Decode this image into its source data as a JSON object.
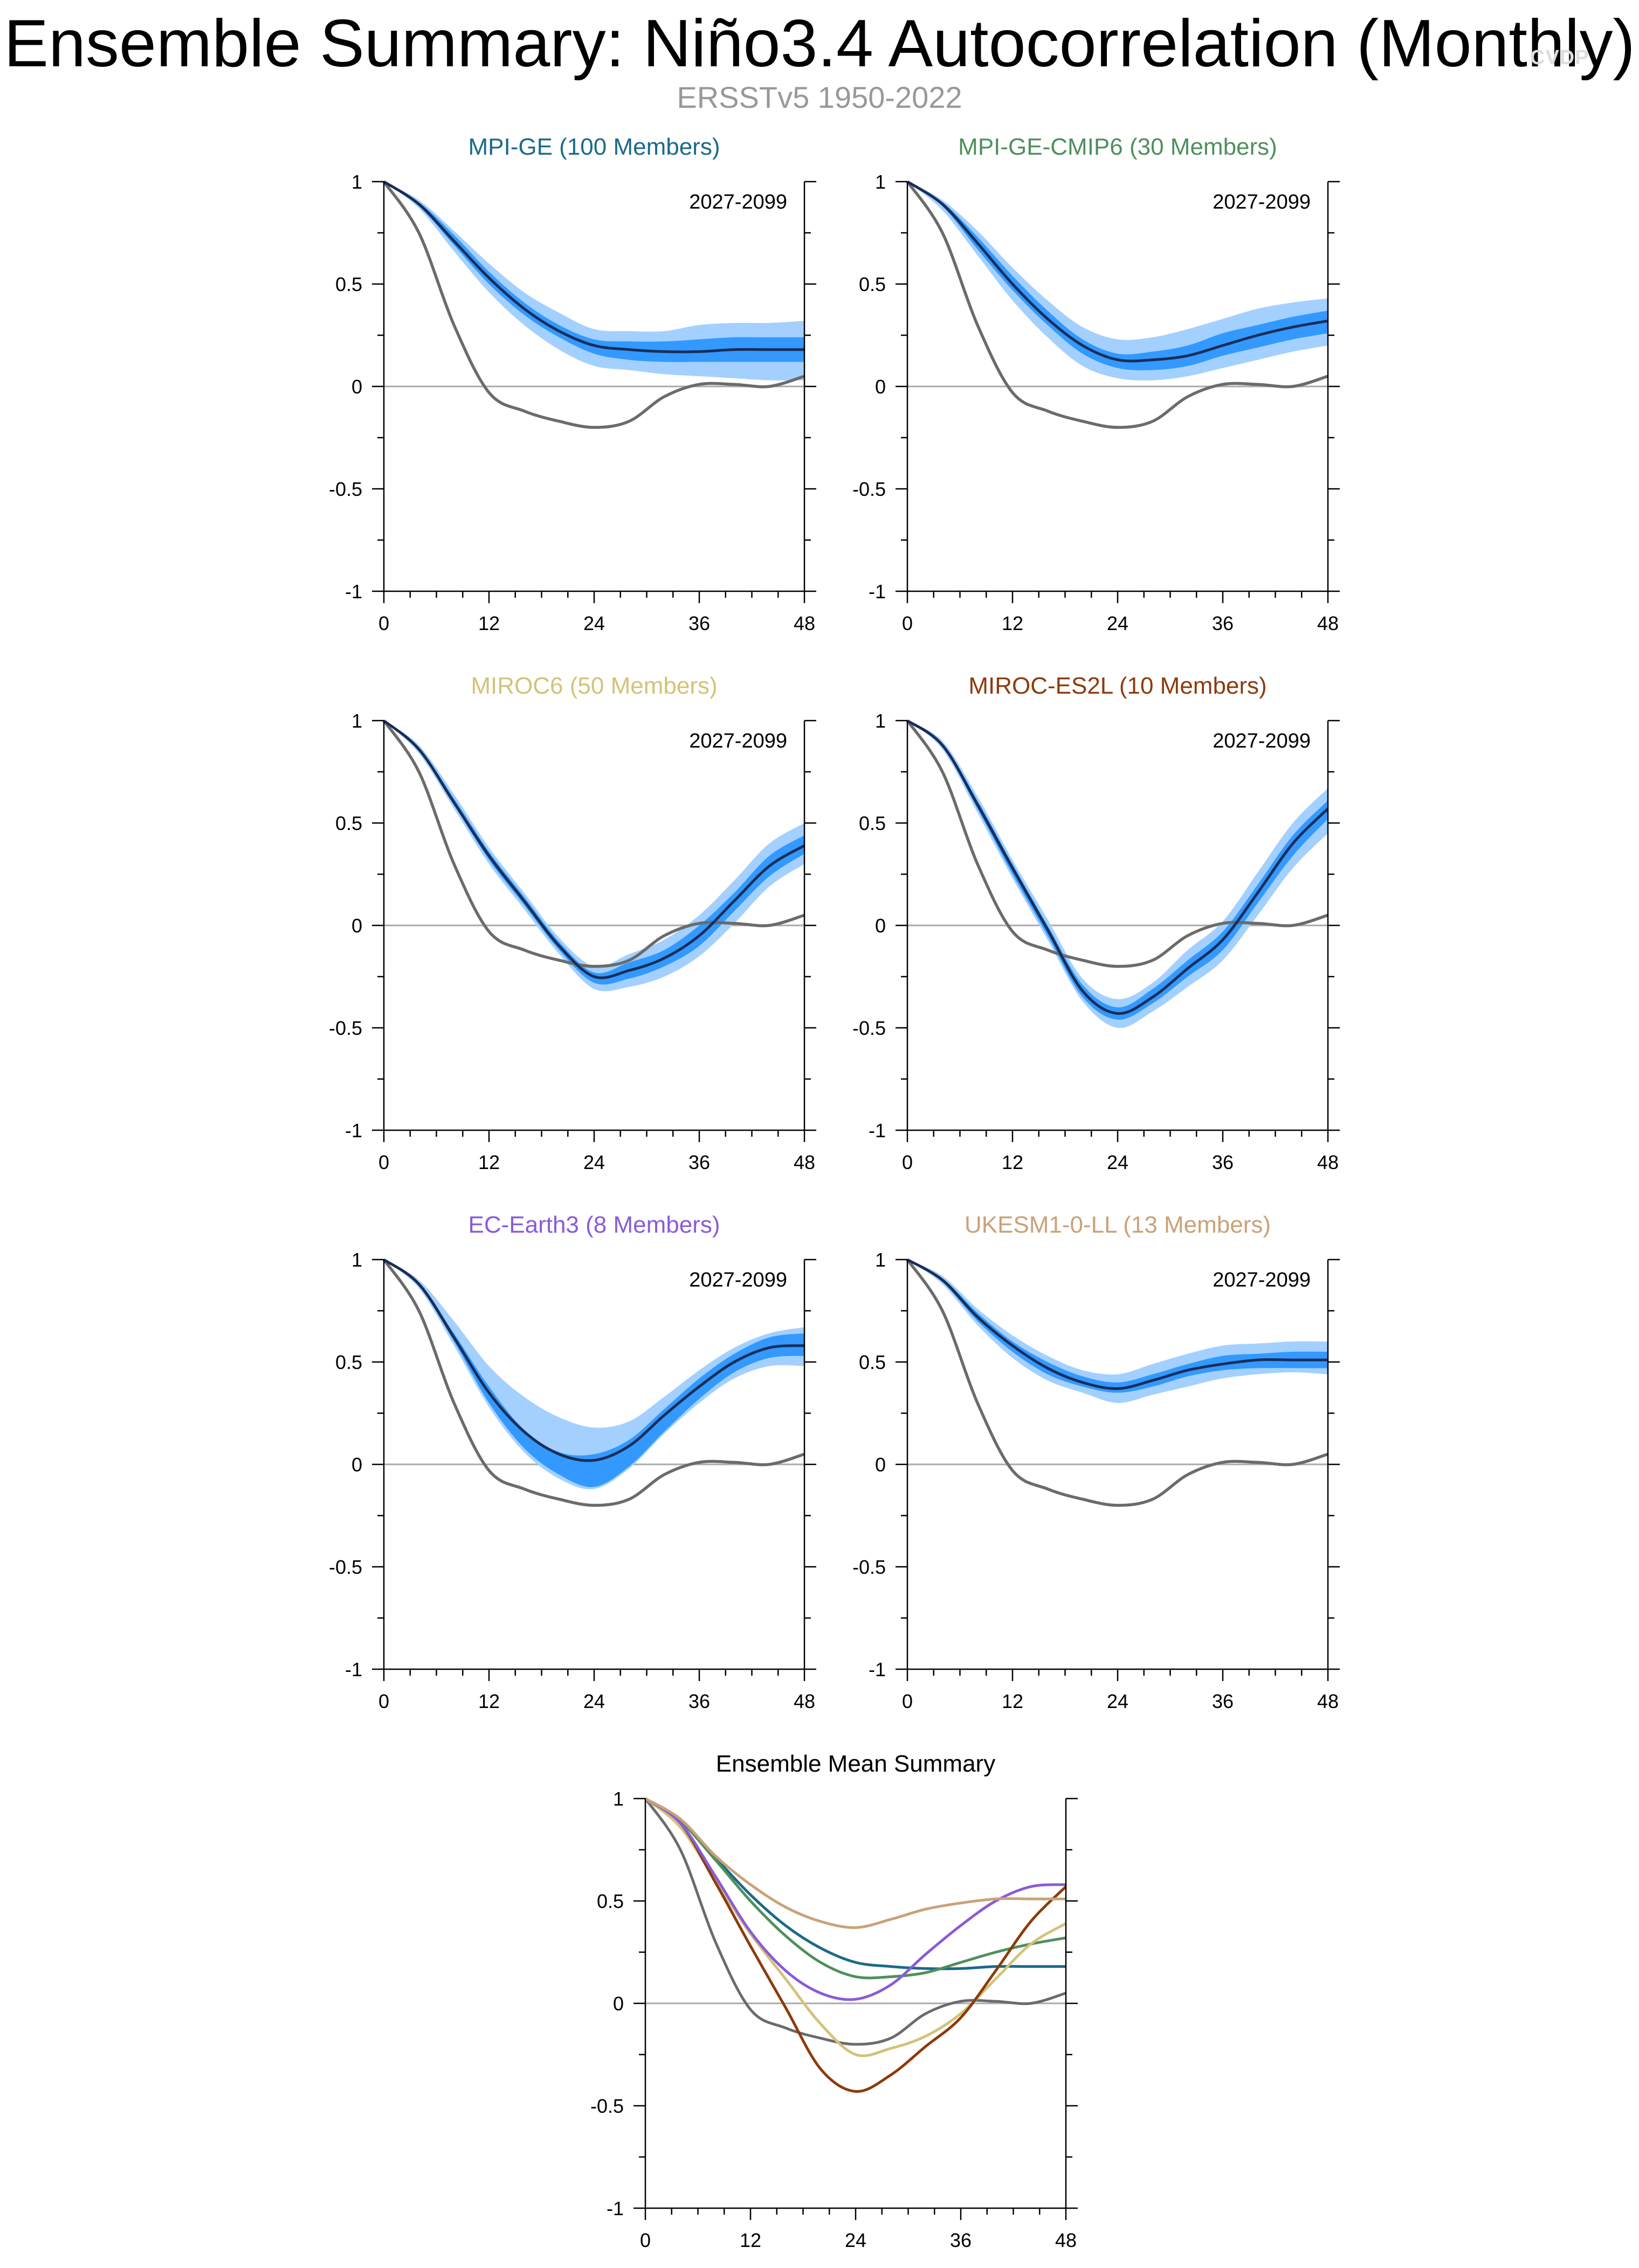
{
  "title": "Ensemble Summary: Niño3.4 Autocorrelation (Monthly)",
  "subtitle": "ERSSTv5 1950-2022",
  "watermark": "CVDP",
  "colors": {
    "outer_band": "#a3d0ff",
    "inner_band": "#3399ff",
    "ensemble_mean": "#1a2d57",
    "observations": "#6b6b6b",
    "zero_line": "#aaaaaa",
    "axis": "#000000"
  },
  "chart_data": [
    {
      "type": "line",
      "title": "MPI-GE (100 Members)",
      "title_color": "#1a6a8a",
      "period_label": "2027-2099",
      "x_ticks": [
        0,
        12,
        24,
        36,
        48
      ],
      "y_ticks": [
        -1,
        -0.5,
        0,
        0.5,
        1
      ],
      "y_tick_labels": [
        "-1",
        "-0.5",
        "0",
        "0.5",
        "1"
      ],
      "xlim": [
        0,
        48
      ],
      "ylim": [
        -1,
        1
      ],
      "x": [
        0,
        4,
        8,
        12,
        16,
        20,
        24,
        28,
        32,
        36,
        40,
        44,
        48
      ],
      "series": [
        {
          "name": "outer_band",
          "lower": [
            1.0,
            0.87,
            0.66,
            0.46,
            0.3,
            0.18,
            0.1,
            0.08,
            0.06,
            0.05,
            0.04,
            0.03,
            0.03
          ],
          "upper": [
            1.0,
            0.91,
            0.76,
            0.6,
            0.46,
            0.36,
            0.28,
            0.27,
            0.27,
            0.3,
            0.31,
            0.31,
            0.32
          ]
        },
        {
          "name": "inner_band",
          "lower": [
            1.0,
            0.88,
            0.69,
            0.5,
            0.35,
            0.24,
            0.16,
            0.13,
            0.12,
            0.12,
            0.12,
            0.12,
            0.12
          ],
          "upper": [
            1.0,
            0.9,
            0.74,
            0.56,
            0.41,
            0.3,
            0.23,
            0.22,
            0.22,
            0.23,
            0.24,
            0.24,
            0.24
          ]
        },
        {
          "name": "ensemble_mean",
          "values": [
            1.0,
            0.89,
            0.71,
            0.53,
            0.38,
            0.27,
            0.2,
            0.18,
            0.17,
            0.17,
            0.18,
            0.18,
            0.18
          ]
        },
        {
          "name": "observations",
          "values": [
            1.0,
            0.75,
            0.3,
            -0.03,
            -0.12,
            -0.17,
            -0.2,
            -0.17,
            -0.05,
            0.01,
            0.01,
            0.0,
            0.05
          ]
        }
      ]
    },
    {
      "type": "line",
      "title": "MPI-GE-CMIP6 (30 Members)",
      "title_color": "#4f8f5c",
      "period_label": "2027-2099",
      "x_ticks": [
        0,
        12,
        24,
        36,
        48
      ],
      "y_ticks": [
        -1,
        -0.5,
        0,
        0.5,
        1
      ],
      "y_tick_labels": [
        "-1",
        "-0.5",
        "0",
        "0.5",
        "1"
      ],
      "xlim": [
        0,
        48
      ],
      "ylim": [
        -1,
        1
      ],
      "x": [
        0,
        4,
        8,
        12,
        16,
        20,
        24,
        28,
        32,
        36,
        40,
        44,
        48
      ],
      "series": [
        {
          "name": "outer_band",
          "lower": [
            1.0,
            0.86,
            0.64,
            0.42,
            0.24,
            0.1,
            0.04,
            0.03,
            0.05,
            0.09,
            0.13,
            0.17,
            0.2
          ],
          "upper": [
            1.0,
            0.91,
            0.76,
            0.58,
            0.42,
            0.29,
            0.23,
            0.24,
            0.28,
            0.33,
            0.38,
            0.41,
            0.43
          ]
        },
        {
          "name": "inner_band",
          "lower": [
            1.0,
            0.88,
            0.67,
            0.47,
            0.3,
            0.16,
            0.09,
            0.08,
            0.1,
            0.15,
            0.19,
            0.23,
            0.26
          ],
          "upper": [
            1.0,
            0.9,
            0.73,
            0.54,
            0.37,
            0.23,
            0.16,
            0.17,
            0.2,
            0.26,
            0.3,
            0.34,
            0.37
          ]
        },
        {
          "name": "ensemble_mean",
          "values": [
            1.0,
            0.89,
            0.7,
            0.5,
            0.33,
            0.2,
            0.13,
            0.13,
            0.15,
            0.2,
            0.25,
            0.29,
            0.32
          ]
        },
        {
          "name": "observations",
          "values": [
            1.0,
            0.75,
            0.3,
            -0.03,
            -0.12,
            -0.17,
            -0.2,
            -0.17,
            -0.05,
            0.01,
            0.01,
            0.0,
            0.05
          ]
        }
      ]
    },
    {
      "type": "line",
      "title": "MIROC6 (50 Members)",
      "title_color": "#d3c27a",
      "period_label": "2027-2099",
      "x_ticks": [
        0,
        12,
        24,
        36,
        48
      ],
      "y_ticks": [
        -1,
        -0.5,
        0,
        0.5,
        1
      ],
      "y_tick_labels": [
        "-1",
        "-0.5",
        "0",
        "0.5",
        "1"
      ],
      "xlim": [
        0,
        48
      ],
      "ylim": [
        -1,
        1
      ],
      "x": [
        0,
        4,
        8,
        12,
        16,
        20,
        24,
        28,
        32,
        36,
        40,
        44,
        48
      ],
      "series": [
        {
          "name": "outer_band",
          "lower": [
            1.0,
            0.84,
            0.57,
            0.3,
            0.08,
            -0.14,
            -0.31,
            -0.3,
            -0.25,
            -0.15,
            0.01,
            0.19,
            0.3
          ],
          "upper": [
            1.0,
            0.88,
            0.64,
            0.38,
            0.16,
            -0.06,
            -0.2,
            -0.14,
            -0.07,
            0.05,
            0.22,
            0.4,
            0.5
          ]
        },
        {
          "name": "inner_band",
          "lower": [
            1.0,
            0.85,
            0.59,
            0.32,
            0.1,
            -0.12,
            -0.28,
            -0.26,
            -0.2,
            -0.1,
            0.07,
            0.24,
            0.35
          ],
          "upper": [
            1.0,
            0.87,
            0.62,
            0.36,
            0.14,
            -0.08,
            -0.23,
            -0.18,
            -0.12,
            0.0,
            0.16,
            0.34,
            0.44
          ]
        },
        {
          "name": "ensemble_mean",
          "values": [
            1.0,
            0.86,
            0.6,
            0.34,
            0.12,
            -0.1,
            -0.25,
            -0.22,
            -0.16,
            -0.05,
            0.12,
            0.29,
            0.39
          ]
        },
        {
          "name": "observations",
          "values": [
            1.0,
            0.75,
            0.3,
            -0.03,
            -0.12,
            -0.17,
            -0.2,
            -0.17,
            -0.05,
            0.01,
            0.01,
            0.0,
            0.05
          ]
        }
      ]
    },
    {
      "type": "line",
      "title": "MIROC-ES2L (10 Members)",
      "title_color": "#8c3b0c",
      "period_label": "2027-2099",
      "x_ticks": [
        0,
        12,
        24,
        36,
        48
      ],
      "y_ticks": [
        -1,
        -0.5,
        0,
        0.5,
        1
      ],
      "y_tick_labels": [
        "-1",
        "-0.5",
        "0",
        "0.5",
        "1"
      ],
      "xlim": [
        0,
        48
      ],
      "ylim": [
        -1,
        1
      ],
      "x": [
        0,
        4,
        8,
        12,
        16,
        20,
        24,
        28,
        32,
        36,
        40,
        44,
        48
      ],
      "series": [
        {
          "name": "outer_band",
          "lower": [
            1.0,
            0.86,
            0.55,
            0.23,
            -0.07,
            -0.37,
            -0.5,
            -0.42,
            -0.3,
            -0.17,
            0.05,
            0.28,
            0.45
          ],
          "upper": [
            1.0,
            0.9,
            0.63,
            0.32,
            0.03,
            -0.26,
            -0.36,
            -0.28,
            -0.12,
            0.02,
            0.26,
            0.5,
            0.67
          ]
        },
        {
          "name": "inner_band",
          "lower": [
            1.0,
            0.87,
            0.57,
            0.25,
            -0.05,
            -0.35,
            -0.46,
            -0.38,
            -0.25,
            -0.12,
            0.11,
            0.34,
            0.52
          ],
          "upper": [
            1.0,
            0.89,
            0.61,
            0.3,
            0.0,
            -0.29,
            -0.4,
            -0.31,
            -0.17,
            -0.03,
            0.2,
            0.44,
            0.61
          ]
        },
        {
          "name": "ensemble_mean",
          "values": [
            1.0,
            0.88,
            0.59,
            0.28,
            -0.02,
            -0.32,
            -0.43,
            -0.35,
            -0.21,
            -0.07,
            0.16,
            0.4,
            0.57
          ]
        },
        {
          "name": "observations",
          "values": [
            1.0,
            0.75,
            0.3,
            -0.03,
            -0.12,
            -0.17,
            -0.2,
            -0.17,
            -0.05,
            0.01,
            0.01,
            0.0,
            0.05
          ]
        }
      ]
    },
    {
      "type": "line",
      "title": "EC-Earth3 (8 Members)",
      "title_color": "#8a5bd8",
      "period_label": "2027-2099",
      "x_ticks": [
        0,
        12,
        24,
        36,
        48
      ],
      "y_ticks": [
        -1,
        -0.5,
        0,
        0.5,
        1
      ],
      "y_tick_labels": [
        "-1",
        "-0.5",
        "0",
        "0.5",
        "1"
      ],
      "xlim": [
        0,
        48
      ],
      "ylim": [
        -1,
        1
      ],
      "x": [
        0,
        4,
        8,
        12,
        16,
        20,
        24,
        28,
        32,
        36,
        40,
        44,
        48
      ],
      "series": [
        {
          "name": "outer_band",
          "lower": [
            1.0,
            0.86,
            0.58,
            0.28,
            0.06,
            -0.07,
            -0.12,
            -0.02,
            0.15,
            0.3,
            0.42,
            0.48,
            0.48
          ],
          "upper": [
            1.0,
            0.9,
            0.7,
            0.48,
            0.33,
            0.23,
            0.18,
            0.21,
            0.33,
            0.46,
            0.57,
            0.64,
            0.67
          ]
        },
        {
          "name": "inner_band",
          "lower": [
            1.0,
            0.87,
            0.6,
            0.3,
            0.08,
            -0.05,
            -0.11,
            -0.01,
            0.16,
            0.32,
            0.45,
            0.52,
            0.53
          ],
          "upper": [
            1.0,
            0.89,
            0.64,
            0.38,
            0.17,
            0.06,
            0.05,
            0.12,
            0.27,
            0.42,
            0.54,
            0.62,
            0.64
          ]
        },
        {
          "name": "ensemble_mean",
          "values": [
            1.0,
            0.88,
            0.62,
            0.35,
            0.16,
            0.05,
            0.02,
            0.09,
            0.24,
            0.38,
            0.5,
            0.57,
            0.58
          ]
        },
        {
          "name": "observations",
          "values": [
            1.0,
            0.75,
            0.3,
            -0.03,
            -0.12,
            -0.17,
            -0.2,
            -0.17,
            -0.05,
            0.01,
            0.01,
            0.0,
            0.05
          ]
        }
      ]
    },
    {
      "type": "line",
      "title": "UKESM1-0-LL (13 Members)",
      "title_color": "#c9a278",
      "period_label": "2027-2099",
      "x_ticks": [
        0,
        12,
        24,
        36,
        48
      ],
      "y_ticks": [
        -1,
        -0.5,
        0,
        0.5,
        1
      ],
      "y_tick_labels": [
        "-1",
        "-0.5",
        "0",
        "0.5",
        "1"
      ],
      "xlim": [
        0,
        48
      ],
      "ylim": [
        -1,
        1
      ],
      "x": [
        0,
        4,
        8,
        12,
        16,
        20,
        24,
        28,
        32,
        36,
        40,
        44,
        48
      ],
      "series": [
        {
          "name": "outer_band",
          "lower": [
            1.0,
            0.88,
            0.68,
            0.52,
            0.41,
            0.35,
            0.3,
            0.34,
            0.38,
            0.42,
            0.44,
            0.45,
            0.44
          ],
          "upper": [
            1.0,
            0.92,
            0.76,
            0.63,
            0.53,
            0.46,
            0.44,
            0.49,
            0.54,
            0.58,
            0.59,
            0.6,
            0.6
          ]
        },
        {
          "name": "inner_band",
          "lower": [
            1.0,
            0.89,
            0.7,
            0.55,
            0.44,
            0.38,
            0.35,
            0.38,
            0.43,
            0.46,
            0.47,
            0.47,
            0.47
          ],
          "upper": [
            1.0,
            0.91,
            0.74,
            0.6,
            0.5,
            0.43,
            0.4,
            0.44,
            0.49,
            0.53,
            0.54,
            0.55,
            0.55
          ]
        },
        {
          "name": "ensemble_mean",
          "values": [
            1.0,
            0.9,
            0.72,
            0.58,
            0.47,
            0.4,
            0.37,
            0.41,
            0.46,
            0.49,
            0.51,
            0.51,
            0.51
          ]
        },
        {
          "name": "observations",
          "values": [
            1.0,
            0.75,
            0.3,
            -0.03,
            -0.12,
            -0.17,
            -0.2,
            -0.17,
            -0.05,
            0.01,
            0.01,
            0.0,
            0.05
          ]
        }
      ]
    },
    {
      "type": "line",
      "title": "Ensemble Mean Summary",
      "title_color": "#000000",
      "x_ticks": [
        0,
        12,
        24,
        36,
        48
      ],
      "y_ticks": [
        -1,
        -0.5,
        0,
        0.5,
        1
      ],
      "y_tick_labels": [
        "-1",
        "-0.5",
        "0",
        "0.5",
        "1"
      ],
      "xlim": [
        0,
        48
      ],
      "ylim": [
        -1,
        1
      ],
      "x": [
        0,
        4,
        8,
        12,
        16,
        20,
        24,
        28,
        32,
        36,
        40,
        44,
        48
      ],
      "series": [
        {
          "name": "observations",
          "color": "#6b6b6b",
          "values": [
            1.0,
            0.75,
            0.3,
            -0.03,
            -0.12,
            -0.17,
            -0.2,
            -0.17,
            -0.05,
            0.01,
            0.01,
            0.0,
            0.05
          ]
        },
        {
          "name": "MPI-GE",
          "color": "#1a6a8a",
          "values": [
            1.0,
            0.89,
            0.71,
            0.53,
            0.38,
            0.27,
            0.2,
            0.18,
            0.17,
            0.17,
            0.18,
            0.18,
            0.18
          ]
        },
        {
          "name": "MPI-GE-CMIP6",
          "color": "#4f8f5c",
          "values": [
            1.0,
            0.89,
            0.7,
            0.5,
            0.33,
            0.2,
            0.13,
            0.13,
            0.15,
            0.2,
            0.25,
            0.29,
            0.32
          ]
        },
        {
          "name": "MIROC6",
          "color": "#d3c27a",
          "values": [
            1.0,
            0.86,
            0.6,
            0.34,
            0.12,
            -0.1,
            -0.25,
            -0.22,
            -0.16,
            -0.05,
            0.12,
            0.29,
            0.39
          ]
        },
        {
          "name": "MIROC-ES2L",
          "color": "#8c3b0c",
          "values": [
            1.0,
            0.88,
            0.59,
            0.28,
            -0.02,
            -0.32,
            -0.43,
            -0.35,
            -0.21,
            -0.07,
            0.16,
            0.4,
            0.57
          ]
        },
        {
          "name": "EC-Earth3",
          "color": "#8a5bd8",
          "values": [
            1.0,
            0.88,
            0.62,
            0.35,
            0.16,
            0.05,
            0.02,
            0.09,
            0.24,
            0.38,
            0.5,
            0.57,
            0.58
          ]
        },
        {
          "name": "UKESM1-0-LL",
          "color": "#c9a278",
          "values": [
            1.0,
            0.9,
            0.72,
            0.58,
            0.47,
            0.4,
            0.37,
            0.41,
            0.46,
            0.49,
            0.51,
            0.51,
            0.51
          ]
        }
      ]
    }
  ]
}
